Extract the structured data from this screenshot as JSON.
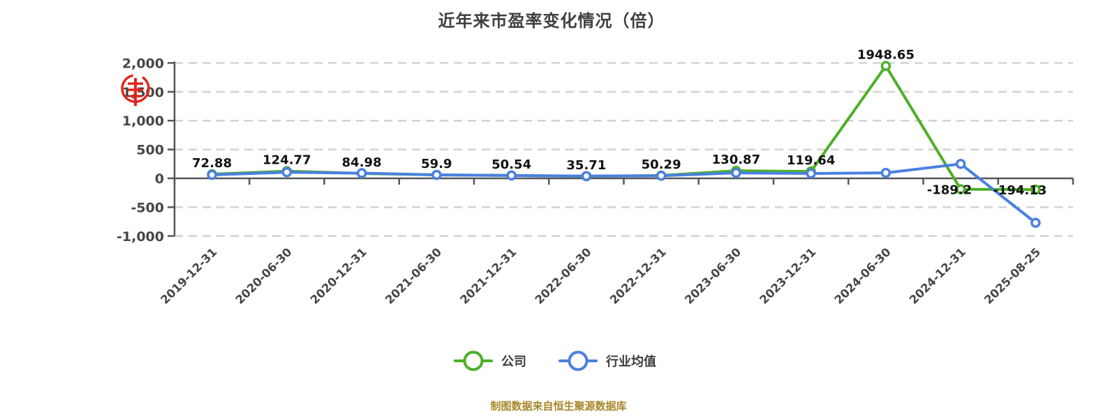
{
  "chart_data": {
    "type": "line",
    "title": "近年来市盈率变化情况（倍）",
    "categories": [
      "2019-12-31",
      "2020-06-30",
      "2020-12-31",
      "2021-06-30",
      "2021-12-31",
      "2022-06-30",
      "2022-12-31",
      "2023-06-30",
      "2023-12-31",
      "2024-06-30",
      "2024-12-31",
      "2025-08-25"
    ],
    "series": [
      {
        "name": "公司",
        "color": "#4db028",
        "values": [
          72.88,
          124.77,
          84.98,
          59.9,
          50.54,
          35.71,
          50.29,
          130.87,
          119.64,
          1948.65,
          -189.2,
          -194.13
        ],
        "labels": [
          "72.88",
          "124.77",
          "84.98",
          "59.9",
          "50.54",
          "35.71",
          "50.29",
          "130.87",
          "119.64",
          "1948.65",
          "-189.2",
          "-194.13"
        ],
        "show_labels": true
      },
      {
        "name": "行业均值",
        "color": "#4a80e0",
        "values": [
          60,
          105,
          90,
          60,
          50,
          40,
          45,
          95,
          85,
          95,
          250,
          -770
        ],
        "labels": [],
        "show_labels": false
      }
    ],
    "y_axis": {
      "min": -1000,
      "max": 2000,
      "step": 500,
      "ticks": [
        2000,
        1500,
        1000,
        500,
        0,
        -500,
        -1000
      ],
      "tick_labels": [
        "2,000",
        "1,500",
        "1,000",
        "500",
        "0",
        "-500",
        "-1,000"
      ]
    },
    "grid": "dashed",
    "legend_position": "bottom"
  },
  "legend": {
    "items": [
      {
        "label": "公司",
        "color": "#4db028"
      },
      {
        "label": "行业均值",
        "color": "#4a80e0"
      }
    ]
  },
  "footer": {
    "source_text": "制图数据来自恒生聚源数据库",
    "color": "#a8872b"
  },
  "watermark": {
    "name": "red-seal-stamp",
    "color": "#e3241d"
  },
  "colors": {
    "grid_line": "#d2d2d2",
    "axis_line": "#55565a",
    "tick_label": "#464646",
    "data_label": "#111111",
    "title": "#3f3f3f"
  }
}
